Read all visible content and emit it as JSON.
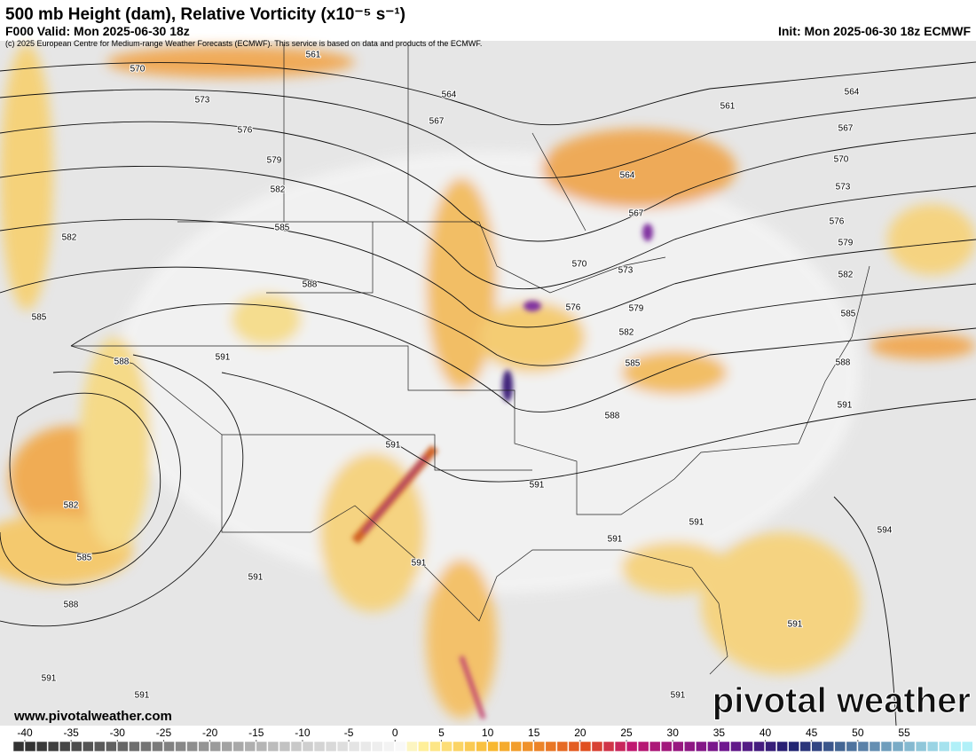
{
  "header": {
    "title": "500 mb Height (dam), Relative Vorticity (x10⁻⁵ s⁻¹)",
    "valid": "F000 Valid: Mon 2025-06-30 18z",
    "init": "Init: Mon 2025-06-30 18z ECMWF",
    "copyright": "(c) 2025 European Centre for Medium-range Weather Forecasts (ECMWF). This service is based on data and products of the ECMWF."
  },
  "map": {
    "contour_labels": [
      "570",
      "561",
      "573",
      "576",
      "579",
      "582",
      "564",
      "567",
      "585",
      "582",
      "588",
      "585",
      "588",
      "591",
      "591",
      "582",
      "585",
      "588",
      "591",
      "591",
      "591",
      "591",
      "591",
      "591",
      "591",
      "591",
      "594",
      "591",
      "591",
      "588",
      "585",
      "582",
      "579",
      "576",
      "573",
      "570",
      "567",
      "564",
      "561",
      "564",
      "567",
      "570",
      "573",
      "576",
      "579",
      "582",
      "585",
      "588"
    ]
  },
  "footer": {
    "website": "www.pivotalweather.com",
    "watermark": "pivotal weather"
  },
  "colorbar": {
    "ticks": [
      -40,
      -35,
      -30,
      -25,
      -20,
      -15,
      -10,
      -5,
      0,
      5,
      10,
      15,
      20,
      25,
      30,
      35,
      40,
      45,
      50,
      55
    ]
  }
}
